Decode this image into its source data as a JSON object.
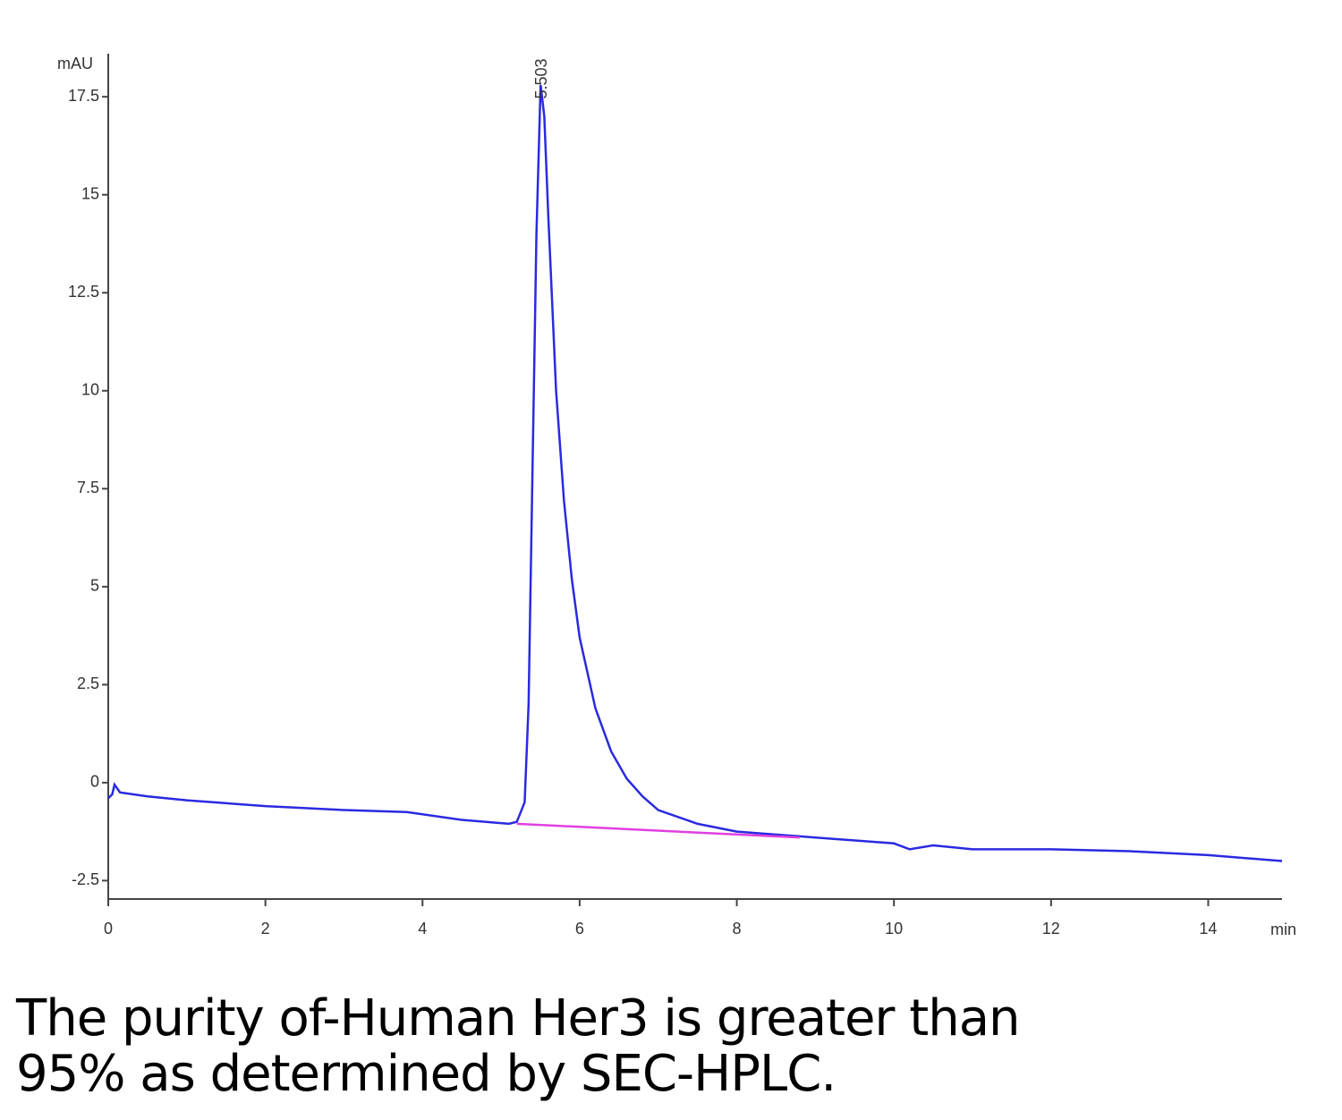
{
  "chart_data": {
    "type": "line",
    "ylabel": "mAU",
    "xlabel": "min",
    "xlim": [
      0,
      14.94
    ],
    "ylim": [
      -2.97,
      18.6
    ],
    "xticks": [
      0,
      2,
      4,
      6,
      8,
      10,
      12,
      14
    ],
    "yticks": [
      -2.5,
      0,
      2.5,
      5,
      7.5,
      10,
      12.5,
      15,
      17.5
    ],
    "series": [
      {
        "color": "#2a2ae0",
        "x": [
          0,
          0.05,
          0.08,
          0.15,
          0.5,
          1,
          2,
          3,
          3.8,
          4.5,
          5.1,
          5.2,
          5.3,
          5.35,
          5.4,
          5.45,
          5.503,
          5.55,
          5.6,
          5.7,
          5.8,
          5.9,
          6.0,
          6.2,
          6.4,
          6.6,
          6.8,
          7.0,
          7.5,
          8,
          9,
          10,
          10.2,
          10.5,
          11,
          12,
          13,
          14,
          14.94
        ],
        "values": [
          -0.4,
          -0.3,
          -0.05,
          -0.25,
          -0.35,
          -0.45,
          -0.6,
          -0.7,
          -0.75,
          -0.95,
          -1.05,
          -1.0,
          -0.5,
          2,
          8,
          14,
          17.8,
          17,
          14.5,
          10,
          7.2,
          5.2,
          3.7,
          1.9,
          0.8,
          0.1,
          -0.35,
          -0.7,
          -1.05,
          -1.25,
          -1.4,
          -1.55,
          -1.7,
          -1.6,
          -1.7,
          -1.7,
          -1.75,
          -1.85,
          -2.0
        ]
      },
      {
        "color": "#e040e0",
        "x": [
          5.2,
          8.8
        ],
        "values": [
          -1.05,
          -1.4
        ]
      }
    ],
    "annotations": [
      {
        "label": "5.503",
        "x": 5.503
      }
    ]
  },
  "caption": [
    "The purity of-Human Her3 is greater than",
    "95% as determined by SEC-HPLC."
  ]
}
